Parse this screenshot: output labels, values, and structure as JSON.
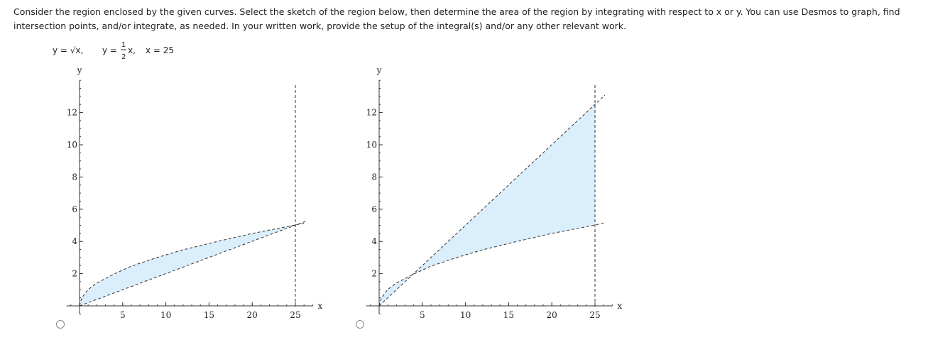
{
  "instructions": [
    "Consider the region enclosed by the given curves. Select the sketch of the region below, then determine the area of the region by integrating with respect to x or y. You can use Desmos to graph, find",
    "intersection points, and/or integrate, as needed. In your written work, provide the setup of the integral(s) and/or any other relevant work."
  ],
  "equation": {
    "first": "y = √x,",
    "second_lhs": "y =",
    "numerator": "1",
    "denominator": "2",
    "second_rhs": "x,",
    "third": "x = 25"
  },
  "options": [
    {
      "xlabel": "x",
      "ylabel": "y",
      "xlim": [
        -1.5,
        27
      ],
      "ylim": [
        -0.5,
        14
      ],
      "xticks": [
        5,
        10,
        15,
        20,
        25
      ],
      "yticks": [
        2,
        4,
        6,
        8,
        10,
        12
      ]
    },
    {
      "xlabel": "x",
      "ylabel": "y",
      "xlim": [
        -1.5,
        27
      ],
      "ylim": [
        -0.5,
        14
      ],
      "xticks": [
        5,
        10,
        15,
        20,
        25
      ],
      "yticks": [
        2,
        4,
        6,
        8,
        10,
        12
      ]
    }
  ]
}
